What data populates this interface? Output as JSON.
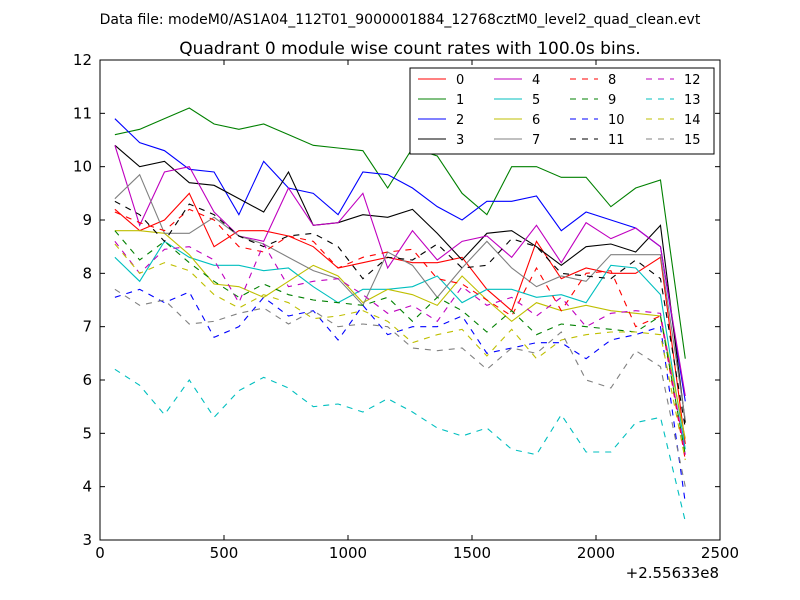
{
  "suptitle": "Data file: modeM0/AS1A04_112T01_9000001884_12768cztM0_level2_quad_clean.evt",
  "chart_data": {
    "type": "line",
    "title": "Quadrant 0 module wise count rates with 100.0s bins.",
    "xlabel": "",
    "ylabel": "",
    "x_offset_label": "+2.55633e8",
    "xlim": [
      0,
      2500
    ],
    "ylim": [
      3,
      12
    ],
    "xticks": [
      0,
      500,
      1000,
      1500,
      2000,
      2500
    ],
    "yticks": [
      3,
      4,
      5,
      6,
      7,
      8,
      9,
      10,
      11,
      12
    ],
    "xtick_labels": [
      "0",
      "500",
      "1000",
      "1500",
      "2000",
      "2500"
    ],
    "ytick_labels": [
      "3",
      "4",
      "5",
      "6",
      "7",
      "8",
      "9",
      "10",
      "11",
      "12"
    ],
    "grid": false,
    "legend_position": "top-right",
    "x": [
      60,
      160,
      260,
      360,
      460,
      560,
      660,
      760,
      860,
      960,
      1060,
      1160,
      1260,
      1360,
      1460,
      1560,
      1660,
      1760,
      1860,
      1960,
      2060,
      2160,
      2260,
      2360
    ],
    "series": [
      {
        "name": "0",
        "color": "#ff0000",
        "dash": "solid",
        "values": [
          9.2,
          8.8,
          9.0,
          9.5,
          8.5,
          8.8,
          8.8,
          8.7,
          8.5,
          8.1,
          8.2,
          8.3,
          8.2,
          8.2,
          8.3,
          7.7,
          7.3,
          8.6,
          7.9,
          8.1,
          8.0,
          8.0,
          8.3,
          4.8
        ]
      },
      {
        "name": "1",
        "color": "#008000",
        "dash": "solid",
        "values": [
          10.6,
          10.7,
          10.9,
          11.1,
          10.8,
          10.7,
          10.8,
          10.6,
          10.4,
          10.35,
          10.3,
          9.6,
          10.35,
          10.2,
          9.5,
          9.1,
          10.0,
          10.0,
          9.8,
          9.8,
          9.25,
          9.6,
          9.75,
          6.4
        ]
      },
      {
        "name": "2",
        "color": "#0000ff",
        "dash": "solid",
        "values": [
          10.9,
          10.45,
          10.3,
          9.95,
          9.9,
          9.1,
          10.1,
          9.6,
          9.5,
          9.1,
          9.9,
          9.85,
          9.6,
          9.25,
          9.0,
          9.35,
          9.35,
          9.45,
          8.8,
          9.15,
          9.0,
          8.85,
          8.5,
          5.6
        ]
      },
      {
        "name": "3",
        "color": "#000000",
        "dash": "solid",
        "values": [
          10.4,
          10.0,
          10.1,
          9.7,
          9.65,
          9.4,
          9.15,
          9.9,
          8.9,
          8.95,
          9.1,
          9.05,
          9.2,
          8.75,
          8.25,
          8.75,
          8.8,
          8.5,
          8.15,
          8.5,
          8.55,
          8.4,
          8.9,
          5.2
        ]
      },
      {
        "name": "4",
        "color": "#bf00bf",
        "dash": "solid",
        "values": [
          10.4,
          8.9,
          9.9,
          10.0,
          9.15,
          8.7,
          8.6,
          9.6,
          8.9,
          8.95,
          9.5,
          8.1,
          8.8,
          8.25,
          8.6,
          8.7,
          8.3,
          8.9,
          8.2,
          8.95,
          8.65,
          8.85,
          8.5,
          5.7
        ]
      },
      {
        "name": "5",
        "color": "#00bfbf",
        "dash": "solid",
        "values": [
          8.3,
          7.85,
          8.6,
          8.3,
          8.15,
          8.15,
          8.05,
          8.1,
          7.75,
          7.45,
          7.7,
          7.7,
          7.75,
          7.95,
          7.45,
          7.7,
          7.7,
          7.55,
          7.6,
          7.45,
          8.15,
          8.1,
          7.6,
          4.7
        ]
      },
      {
        "name": "6",
        "color": "#bfbf00",
        "dash": "solid",
        "values": [
          8.8,
          8.8,
          8.75,
          8.35,
          7.8,
          7.75,
          7.55,
          7.85,
          8.15,
          7.95,
          7.45,
          7.7,
          7.6,
          7.4,
          7.95,
          7.5,
          7.1,
          7.45,
          7.3,
          7.4,
          7.3,
          7.25,
          7.2,
          4.9
        ]
      },
      {
        "name": "7",
        "color": "#808080",
        "dash": "solid",
        "values": [
          9.4,
          9.85,
          8.75,
          8.75,
          9.05,
          8.7,
          8.55,
          8.3,
          8.05,
          7.9,
          7.4,
          8.4,
          8.15,
          7.55,
          8.1,
          8.6,
          8.1,
          7.75,
          7.95,
          7.85,
          8.35,
          8.35,
          8.35,
          5.25
        ]
      },
      {
        "name": "8",
        "color": "#ff0000",
        "dash": "dashed",
        "values": [
          9.15,
          8.95,
          8.8,
          9.2,
          9.0,
          8.5,
          8.4,
          8.7,
          8.6,
          8.1,
          8.3,
          8.4,
          8.45,
          7.9,
          7.8,
          7.5,
          7.2,
          8.1,
          7.3,
          8.0,
          8.05,
          7.0,
          7.2,
          4.5
        ]
      },
      {
        "name": "9",
        "color": "#008000",
        "dash": "dashed",
        "values": [
          8.8,
          8.25,
          8.6,
          8.2,
          7.85,
          7.55,
          7.8,
          7.6,
          7.5,
          7.45,
          7.4,
          7.55,
          7.1,
          7.55,
          7.3,
          6.9,
          7.3,
          6.85,
          7.05,
          7.0,
          6.95,
          6.9,
          7.2,
          4.6
        ]
      },
      {
        "name": "10",
        "color": "#0000ff",
        "dash": "dashed",
        "values": [
          7.55,
          7.7,
          7.45,
          7.65,
          6.8,
          7.0,
          7.55,
          7.2,
          7.3,
          6.75,
          7.4,
          6.85,
          7.0,
          7.0,
          7.2,
          6.5,
          6.6,
          6.7,
          6.7,
          6.4,
          6.75,
          6.85,
          7.0,
          3.7
        ]
      },
      {
        "name": "11",
        "color": "#000000",
        "dash": "dashed",
        "values": [
          9.35,
          9.1,
          8.6,
          9.3,
          9.1,
          8.7,
          8.5,
          8.7,
          8.75,
          8.5,
          7.9,
          8.3,
          8.25,
          8.55,
          8.1,
          8.15,
          8.65,
          8.5,
          8.0,
          7.95,
          7.9,
          8.25,
          7.9,
          5.1
        ]
      },
      {
        "name": "12",
        "color": "#bf00bf",
        "dash": "dashed",
        "values": [
          8.6,
          8.0,
          8.45,
          8.5,
          8.25,
          7.45,
          8.55,
          7.75,
          7.85,
          7.9,
          7.6,
          7.25,
          7.4,
          7.1,
          7.75,
          7.4,
          7.55,
          7.2,
          7.55,
          7.0,
          7.25,
          7.3,
          7.25,
          4.6
        ]
      },
      {
        "name": "13",
        "color": "#00bfbf",
        "dash": "dashed",
        "values": [
          6.2,
          5.9,
          5.35,
          6.0,
          5.3,
          5.8,
          6.05,
          5.85,
          5.5,
          5.55,
          5.4,
          5.65,
          5.4,
          5.1,
          4.95,
          5.1,
          4.7,
          4.6,
          5.35,
          4.65,
          4.65,
          5.2,
          5.3,
          3.35
        ]
      },
      {
        "name": "14",
        "color": "#bfbf00",
        "dash": "dashed",
        "values": [
          8.55,
          8.0,
          8.2,
          8.05,
          7.6,
          7.35,
          7.6,
          7.45,
          7.15,
          7.2,
          7.3,
          7.1,
          6.7,
          6.85,
          6.95,
          6.45,
          6.95,
          6.4,
          6.75,
          6.85,
          6.9,
          6.9,
          6.85,
          4.5
        ]
      },
      {
        "name": "15",
        "color": "#808080",
        "dash": "dashed",
        "values": [
          7.7,
          7.4,
          7.5,
          7.05,
          7.1,
          7.25,
          7.35,
          7.05,
          7.3,
          7.0,
          7.05,
          7.0,
          6.6,
          6.55,
          6.6,
          6.2,
          6.6,
          6.5,
          6.9,
          6.0,
          5.85,
          6.55,
          6.25,
          4.0
        ]
      }
    ]
  }
}
